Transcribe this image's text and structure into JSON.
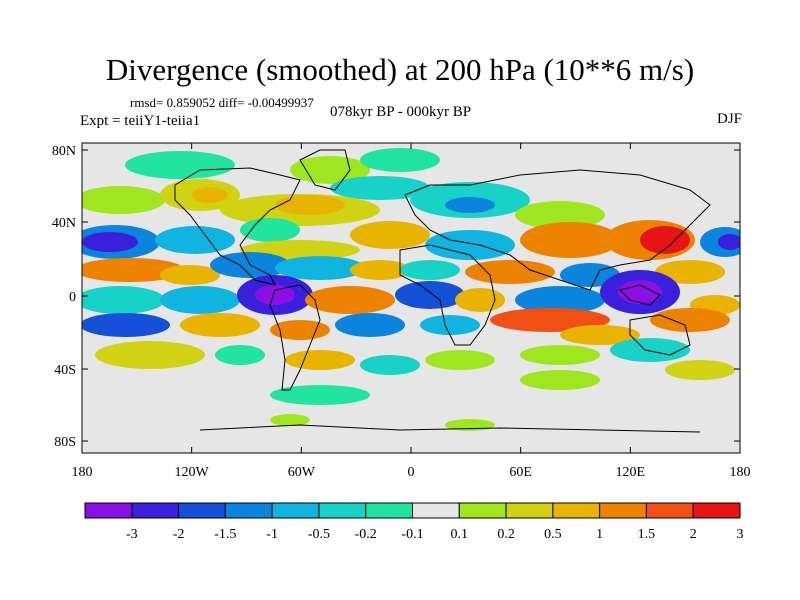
{
  "title": "Divergence (smoothed) at 200 hPa (10**6 m/s)",
  "stats": "rmsd= 0.859052  diff= -0.00499937",
  "experiment": "Expt = teiiY1-teiia1",
  "period": "078kyr BP - 000kyr BP",
  "season": "DJF",
  "y_ticks": [
    "80N",
    "40N",
    "0",
    "40S",
    "80S"
  ],
  "x_ticks": [
    "180",
    "120W",
    "60W",
    "0",
    "60E",
    "120E",
    "180"
  ],
  "colorbar": {
    "labels": [
      "-3",
      "-2",
      "-1.5",
      "-1",
      "-0.5",
      "-0.2",
      "-0.1",
      "0.1",
      "0.2",
      "0.5",
      "1",
      "1.5",
      "2",
      "3"
    ],
    "colors": [
      "#8a10e6",
      "#3a20dc",
      "#1450d8",
      "#0a84dc",
      "#10b4e0",
      "#18d2c8",
      "#20e4a0",
      "#e6e6e6",
      "#a0e61e",
      "#d2d214",
      "#e8b400",
      "#ec8200",
      "#f05014",
      "#e61414"
    ]
  }
}
